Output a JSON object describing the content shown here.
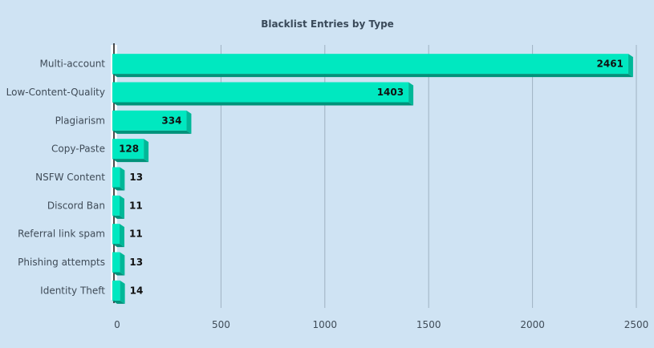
{
  "chart_data": {
    "type": "bar",
    "orientation": "horizontal",
    "title": "Blacklist Entries by Type",
    "categories": [
      "Multi-account",
      "Low-Content-Quality",
      "Plagiarism",
      "Copy-Paste",
      "NSFW Content",
      "Discord Ban",
      "Referral link spam",
      "Phishing attempts",
      "Identity Theft"
    ],
    "values": [
      2461,
      1403,
      334,
      128,
      13,
      11,
      11,
      13,
      14
    ],
    "xlim": [
      0,
      2500
    ],
    "xticks": [
      0,
      500,
      1000,
      1500,
      2000,
      2500
    ],
    "grid": true,
    "bar_color": "#00e8c0"
  }
}
